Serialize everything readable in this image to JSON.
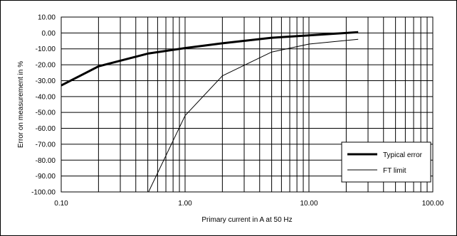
{
  "chart_data": {
    "type": "line",
    "xscale": "log",
    "xlim": [
      0.1,
      100
    ],
    "ylim": [
      -100,
      10
    ],
    "xlabel": "Primary current in A at 50 Hz",
    "ylabel": "Error on measurement in %",
    "x_ticks": [
      "0.10",
      "1.00",
      "10.00",
      "100.00"
    ],
    "y_ticks": [
      "10.00",
      "0.00",
      "-10.00",
      "-20.00",
      "-30.00",
      "-40.00",
      "-50.00",
      "-60.00",
      "-70.00",
      "-80.00",
      "-90.00",
      "-100.00"
    ],
    "grid": true,
    "legend_position": "bottom-right",
    "series": [
      {
        "name": "Typical error",
        "x": [
          0.1,
          0.2,
          0.5,
          1,
          2,
          5,
          10,
          25
        ],
        "y": [
          -33,
          -21,
          -13,
          -9.5,
          -6.5,
          -3,
          -1.5,
          0.5
        ]
      },
      {
        "name": "FT limit",
        "x": [
          0.5,
          1,
          2,
          5,
          10,
          25
        ],
        "y": [
          -101,
          -52,
          -27,
          -12,
          -7,
          -4
        ]
      }
    ]
  }
}
